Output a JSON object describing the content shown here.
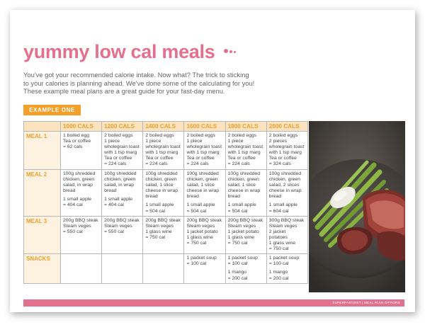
{
  "document": {
    "title": "yummy low cal meals",
    "intro_lines": [
      "You've got your recommended calorie intake. Now what? The trick to sticking",
      "to your calories is planning ahead. We've done some of the calculating for you!",
      "These example meal plans are a great guide for your fast-day menu."
    ],
    "badge": "EXAMPLE ONE",
    "footer": "SUPERFASTDIET | MEAL PLAN OPTIONS",
    "accent_pink": "#e2708e",
    "accent_orange": "#f2a02a"
  },
  "table": {
    "columns": [
      "1000 CALS",
      "1200 CALS",
      "1400 CALS",
      "1600 CALS",
      "1800 CALS",
      "2000 CALS"
    ],
    "rows": [
      {
        "label": "MEAL 1",
        "cells": [
          [
            [
              "1 boiled egg",
              "Tea or coffee",
              "= 62 cals"
            ]
          ],
          [
            [
              "2 boiled eggs",
              "1 piece",
              "wholegrain toast",
              "with 1 tsp marg",
              "Tea or coffee",
              "= 224 cals"
            ]
          ],
          [
            [
              "2 boiled eggs",
              "1 piece",
              "wholegrain toast",
              "with 1 tsp marg",
              "Tea or coffee",
              "= 224 cals"
            ]
          ],
          [
            [
              "2 boiled eggs",
              "1 piece",
              "wholegrain toast",
              "with 1 tsp marg",
              "Tea or coffee",
              "= 224 cals"
            ]
          ],
          [
            [
              "2 boiled eggs",
              "1 piece",
              "wholegrain toast",
              "with 1 tsp marg",
              "Tea or coffee",
              "= 224 cals"
            ]
          ],
          [
            [
              "2 boiled eggs",
              "2 pieces",
              "wholegrain toast",
              "with 1 tsp marg",
              "Tea or coffee",
              "= 324 cals"
            ]
          ]
        ]
      },
      {
        "label": "MEAL 2",
        "cells": [
          [
            [
              "100g shredded",
              "chicken, green",
              "salad, in wrap",
              "bread"
            ],
            [
              "1 small apple",
              "= 404 cal"
            ]
          ],
          [
            [
              "100g shredded",
              "chicken, green",
              "salad, in wrap",
              "bread"
            ],
            [
              "1 small apple",
              "= 404 cal"
            ]
          ],
          [
            [
              "100g shredded",
              "chicken, green",
              "salad, 1 slice",
              "cheese in wrap",
              "bread"
            ],
            [
              "1 small apple",
              "= 504 cal"
            ]
          ],
          [
            [
              "100g shredded",
              "chicken, green",
              "salad, 1 slice",
              "cheese in wrap",
              "bread"
            ],
            [
              "1 small apple",
              "= 504 cal"
            ]
          ],
          [
            [
              "100g shredded",
              "chicken, green",
              "salad, 1 slice",
              "cheese in wrap",
              "bread"
            ],
            [
              "1 small apple",
              "= 504 cal"
            ]
          ],
          [
            [
              "100g shredded",
              "chicken, green",
              "salad, 2 slices",
              "cheese in wrap",
              "bread"
            ],
            [
              "1 small apple",
              "= 604 cal"
            ]
          ]
        ]
      },
      {
        "label": "MEAL 3",
        "cells": [
          [
            [
              "200g BBQ steak",
              "Steam veges",
              "= 550 cal"
            ]
          ],
          [
            [
              "200g BBQ steak",
              "Steam veges",
              "= 550 cal"
            ]
          ],
          [
            [
              "200g BBQ steak",
              "Steam veges",
              "1 glass wine",
              "= 750 cal"
            ]
          ],
          [
            [
              "200g BBQ steak",
              "Steam veges",
              "1 jacket potato",
              "1 glass wine",
              "= 750 cal"
            ]
          ],
          [
            [
              "200g BBQ steak",
              "Steam veges",
              "1 jacket potato",
              "1 glass wine",
              "= 750 cal"
            ]
          ],
          [
            [
              "300g BBQ steak",
              "Steam veges",
              "2 jacket potatoes",
              "1 glass wine",
              "= 750 cal"
            ]
          ]
        ]
      },
      {
        "label": "SNACKS",
        "cells": [
          [],
          [],
          [],
          [
            [
              "1 packet soup",
              "= 100 cal"
            ]
          ],
          [
            [
              "1 packet soup",
              "= 100 cal"
            ],
            [
              "1 mango",
              "= 200 cal"
            ]
          ],
          [
            [
              "1 packet soup",
              "= 100 cal"
            ],
            [
              "1 mango",
              "= 200 cal"
            ]
          ]
        ]
      }
    ]
  },
  "photo": {
    "icon": "steak-asparagus-photo"
  }
}
